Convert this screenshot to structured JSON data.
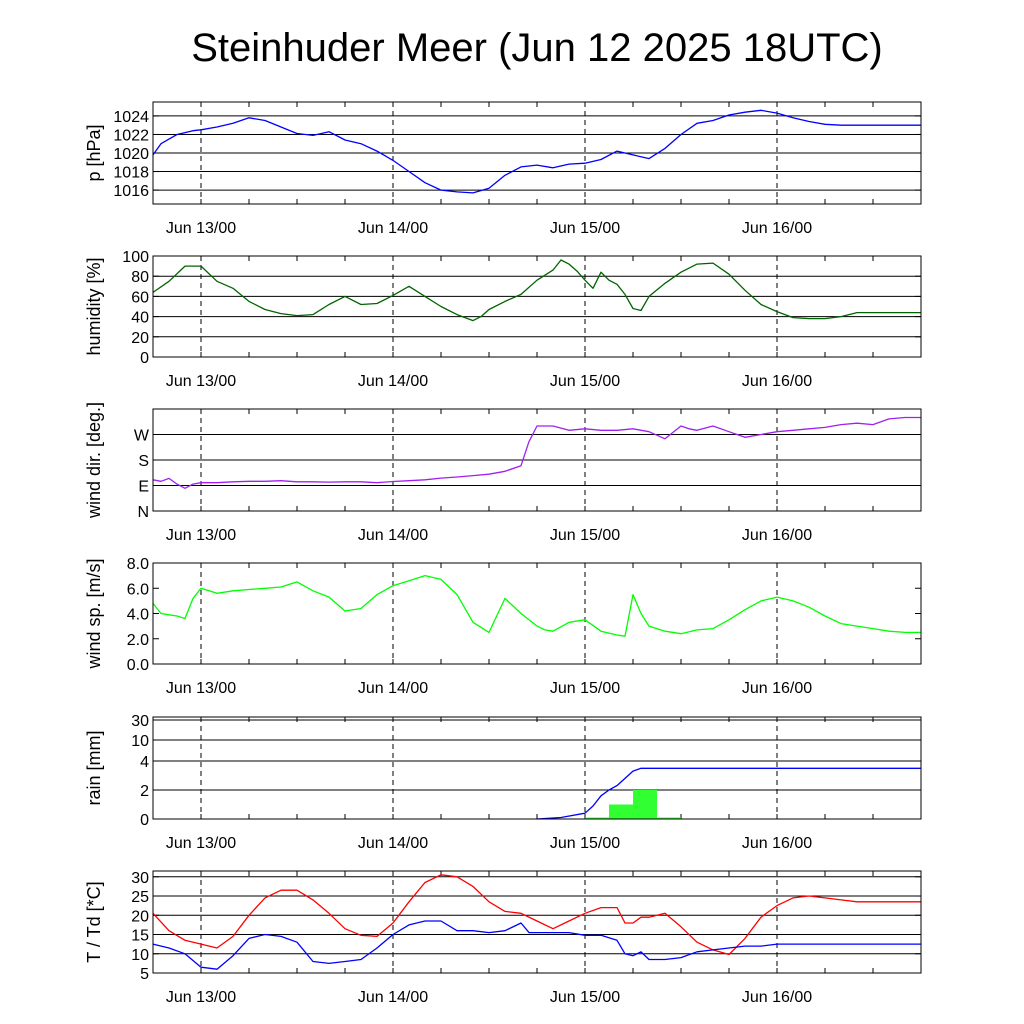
{
  "title": "Steinhuder Meer (Jun 12 2025 18UTC)",
  "chart_data": [
    {
      "type": "line",
      "ylabel": "p [hPa]",
      "x_tick_labels": [
        "Jun 13/00",
        "Jun 14/00",
        "Jun 15/00",
        "Jun 16/00"
      ],
      "x_range_hours": [
        0,
        96
      ],
      "ylim": [
        1014.5,
        1025.5
      ],
      "y_ticks": [
        1016,
        1018,
        1020,
        1022,
        1024
      ],
      "y_tick_labels": [
        "1016",
        "1018",
        "1020",
        "1022",
        "1024"
      ],
      "grid": true,
      "series": [
        {
          "color": "#0000ff",
          "x_hours": [
            0,
            1,
            2,
            3,
            4,
            5,
            6,
            8,
            10,
            12,
            14,
            16,
            18,
            20,
            22,
            24,
            26,
            28,
            30,
            32,
            34,
            36,
            38,
            40,
            42,
            44,
            46,
            48,
            50,
            52,
            54,
            56,
            58,
            60,
            62,
            64,
            66,
            68,
            70,
            72,
            74,
            76,
            78,
            80,
            82,
            84,
            86,
            88,
            90,
            92,
            94,
            96
          ],
          "y": [
            1019.8,
            1021.0,
            1021.5,
            1022.0,
            1022.2,
            1022.4,
            1022.5,
            1022.8,
            1023.2,
            1023.8,
            1023.5,
            1022.8,
            1022.1,
            1021.9,
            1022.3,
            1021.4,
            1021.0,
            1020.2,
            1019.2,
            1018.0,
            1016.8,
            1016.0,
            1015.8,
            1015.7,
            1016.2,
            1017.6,
            1018.5,
            1018.7,
            1018.4,
            1018.8,
            1018.9,
            1019.3,
            1020.2,
            1019.8,
            1019.4,
            1020.5,
            1022.0,
            1023.2,
            1023.5,
            1024.1,
            1024.4,
            1024.6,
            1024.3,
            1023.8,
            1023.4,
            1023.1,
            1023.0,
            1023.0,
            1023.0,
            1023.0,
            1023.0,
            1023.0
          ]
        }
      ]
    },
    {
      "type": "line",
      "ylabel": "humidity [%]",
      "x_tick_labels": [
        "Jun 13/00",
        "Jun 14/00",
        "Jun 15/00",
        "Jun 16/00"
      ],
      "x_range_hours": [
        0,
        96
      ],
      "ylim": [
        0,
        100
      ],
      "y_ticks": [
        0,
        20,
        40,
        60,
        80,
        100
      ],
      "y_tick_labels": [
        "0",
        "20",
        "40",
        "60",
        "80",
        "100"
      ],
      "grid": true,
      "series": [
        {
          "color": "#006400",
          "x_hours": [
            0,
            2,
            4,
            6,
            8,
            10,
            12,
            14,
            16,
            18,
            20,
            22,
            24,
            26,
            28,
            30,
            32,
            34,
            36,
            38,
            40,
            41,
            42,
            44,
            46,
            48,
            50,
            51,
            52,
            53,
            54,
            55,
            56,
            57,
            58,
            59,
            60,
            61,
            62,
            64,
            66,
            68,
            70,
            72,
            74,
            76,
            78,
            80,
            82,
            84,
            86,
            88,
            90,
            92,
            94,
            96
          ],
          "y": [
            64,
            75,
            90,
            90,
            75,
            68,
            55,
            47,
            43,
            41,
            42,
            52,
            60,
            52,
            53,
            61,
            70,
            60,
            50,
            42,
            36,
            40,
            47,
            55,
            62,
            76,
            86,
            96,
            92,
            85,
            76,
            68,
            84,
            76,
            72,
            62,
            48,
            46,
            60,
            73,
            84,
            92,
            93,
            82,
            66,
            52,
            45,
            39,
            38,
            38,
            40,
            44,
            44,
            44,
            44,
            44
          ]
        }
      ]
    },
    {
      "type": "line",
      "ylabel": "wind dir. [deg.]",
      "x_tick_labels": [
        "Jun 13/00",
        "Jun 14/00",
        "Jun 15/00",
        "Jun 16/00"
      ],
      "x_range_hours": [
        0,
        96
      ],
      "ylim": [
        0,
        360
      ],
      "y_ticks": [
        0,
        90,
        180,
        270
      ],
      "y_tick_labels": [
        "N",
        "E",
        "S",
        "W"
      ],
      "grid": true,
      "series": [
        {
          "color": "#a020f0",
          "x_hours": [
            0,
            1,
            2,
            3,
            4,
            5,
            6,
            8,
            10,
            12,
            14,
            16,
            18,
            20,
            22,
            24,
            26,
            28,
            30,
            32,
            34,
            36,
            38,
            40,
            42,
            44,
            46,
            47,
            48,
            50,
            52,
            54,
            56,
            58,
            60,
            62,
            64,
            66,
            67,
            68,
            70,
            72,
            74,
            76,
            78,
            80,
            82,
            84,
            86,
            88,
            90,
            92,
            94,
            96
          ],
          "y": [
            110,
            105,
            115,
            95,
            80,
            95,
            100,
            100,
            103,
            105,
            105,
            107,
            103,
            103,
            102,
            103,
            103,
            100,
            104,
            107,
            110,
            116,
            120,
            125,
            130,
            140,
            160,
            245,
            300,
            300,
            285,
            290,
            285,
            285,
            290,
            280,
            255,
            300,
            290,
            285,
            300,
            280,
            260,
            270,
            280,
            285,
            290,
            295,
            305,
            310,
            305,
            325,
            330,
            330
          ]
        }
      ]
    },
    {
      "type": "line",
      "ylabel": "wind sp. [m/s]",
      "x_tick_labels": [
        "Jun 13/00",
        "Jun 14/00",
        "Jun 15/00",
        "Jun 16/00"
      ],
      "x_range_hours": [
        0,
        96
      ],
      "ylim": [
        0,
        8
      ],
      "y_ticks": [
        0,
        2,
        4,
        6,
        8
      ],
      "y_tick_labels": [
        "0.0",
        "2.0",
        "4.0",
        "6.0",
        "8.0"
      ],
      "grid": false,
      "series": [
        {
          "color": "#00ff00",
          "x_hours": [
            0,
            1,
            2,
            3,
            4,
            5,
            6,
            8,
            10,
            12,
            14,
            16,
            18,
            20,
            22,
            24,
            26,
            28,
            30,
            32,
            34,
            36,
            38,
            40,
            42,
            44,
            46,
            47,
            48,
            49,
            50,
            52,
            54,
            56,
            58,
            59,
            60,
            61,
            62,
            64,
            66,
            68,
            70,
            72,
            74,
            76,
            78,
            80,
            82,
            84,
            86,
            88,
            90,
            92,
            94,
            96
          ],
          "y": [
            4.8,
            4.0,
            3.9,
            3.8,
            3.6,
            5.2,
            6.0,
            5.6,
            5.8,
            5.9,
            6.0,
            6.1,
            6.5,
            5.8,
            5.3,
            4.2,
            4.4,
            5.5,
            6.2,
            6.6,
            7.0,
            6.7,
            5.5,
            3.3,
            2.5,
            5.2,
            4.0,
            3.5,
            3.0,
            2.7,
            2.6,
            3.3,
            3.5,
            2.6,
            2.3,
            2.2,
            5.5,
            4.0,
            3.0,
            2.6,
            2.4,
            2.7,
            2.8,
            3.5,
            4.3,
            5.0,
            5.3,
            5.0,
            4.5,
            3.8,
            3.2,
            3.0,
            2.8,
            2.6,
            2.5,
            2.5
          ]
        }
      ]
    },
    {
      "type": "bar",
      "ylabel": "rain [mm]",
      "x_tick_labels": [
        "Jun 13/00",
        "Jun 14/00",
        "Jun 15/00",
        "Jun 16/00"
      ],
      "x_range_hours": [
        0,
        96
      ],
      "y_ticks": [
        0,
        2,
        4,
        10,
        30
      ],
      "y_tick_labels": [
        "0",
        "2",
        "4",
        "10",
        "30"
      ],
      "y_scale": "nonlinear",
      "grid": true,
      "bars": {
        "color": "#32ff32",
        "x_start_hours": [
          54,
          57,
          60,
          63
        ],
        "x_end_hours": [
          57,
          60,
          63,
          66
        ],
        "values": [
          0.1,
          1.0,
          2.0,
          0.1
        ]
      },
      "series": [
        {
          "name": "accumulated",
          "color": "#0000ff",
          "x_hours": [
            48,
            51,
            54,
            55,
            56,
            57,
            58,
            59,
            60,
            61,
            62,
            63,
            66,
            96
          ],
          "y": [
            0.0,
            0.1,
            0.4,
            0.9,
            1.6,
            2.0,
            2.3,
            2.8,
            3.3,
            3.5,
            3.5,
            3.5,
            3.5,
            3.5
          ]
        }
      ]
    },
    {
      "type": "line",
      "ylabel": "T / Td [*C]",
      "x_tick_labels": [
        "Jun 13/00",
        "Jun 14/00",
        "Jun 15/00",
        "Jun 16/00"
      ],
      "x_range_hours": [
        0,
        96
      ],
      "ylim": [
        5,
        31.5
      ],
      "y_ticks": [
        5,
        10,
        15,
        20,
        25,
        30
      ],
      "y_tick_labels": [
        "5",
        "10",
        "15",
        "20",
        "25",
        "30"
      ],
      "grid": true,
      "series": [
        {
          "color": "#ff0000",
          "x_hours": [
            0,
            2,
            4,
            6,
            8,
            10,
            12,
            14,
            16,
            18,
            20,
            22,
            24,
            26,
            28,
            30,
            32,
            34,
            36,
            38,
            40,
            42,
            44,
            46,
            48,
            50,
            52,
            54,
            56,
            58,
            59,
            60,
            61,
            62,
            64,
            66,
            68,
            70,
            72,
            74,
            76,
            78,
            80,
            82,
            84,
            86,
            88,
            90,
            92,
            94,
            96
          ],
          "y": [
            20.5,
            16,
            13.5,
            12.5,
            11.5,
            14.5,
            20,
            24.5,
            26.5,
            26.5,
            24,
            20.5,
            16.5,
            14.8,
            14.5,
            18,
            23.5,
            28.5,
            30.5,
            30,
            27.5,
            23.5,
            21,
            20.5,
            18.5,
            16.5,
            18.5,
            20.5,
            22,
            22,
            18,
            18,
            19.5,
            19.5,
            20.5,
            17,
            13,
            11,
            9.8,
            14,
            19.5,
            22.5,
            24.5,
            25,
            24.5,
            24,
            23.5,
            23.5,
            23.5,
            23.5,
            23.5
          ]
        },
        {
          "color": "#0000ff",
          "x_hours": [
            0,
            2,
            4,
            6,
            8,
            10,
            12,
            14,
            16,
            18,
            20,
            22,
            24,
            26,
            28,
            30,
            32,
            34,
            36,
            38,
            40,
            42,
            44,
            46,
            47,
            48,
            50,
            52,
            54,
            56,
            58,
            59,
            60,
            61,
            62,
            64,
            66,
            68,
            70,
            72,
            74,
            76,
            78,
            80,
            82,
            84,
            86,
            88,
            90,
            92,
            94,
            96
          ],
          "y": [
            12.5,
            11.5,
            10,
            6.5,
            6,
            9.5,
            14,
            15,
            14.5,
            13,
            8,
            7.5,
            8,
            8.5,
            11.5,
            15,
            17.5,
            18.5,
            18.5,
            16,
            16,
            15.5,
            16,
            18,
            15.5,
            15.5,
            15.5,
            15.5,
            14.8,
            14.8,
            13.5,
            10,
            9.5,
            10.5,
            8.5,
            8.5,
            9,
            10.5,
            11,
            11.5,
            12,
            12,
            12.5,
            12.5,
            12.5,
            12.5,
            12.5,
            12.5,
            12.5,
            12.5,
            12.5,
            12.5
          ]
        }
      ]
    }
  ]
}
